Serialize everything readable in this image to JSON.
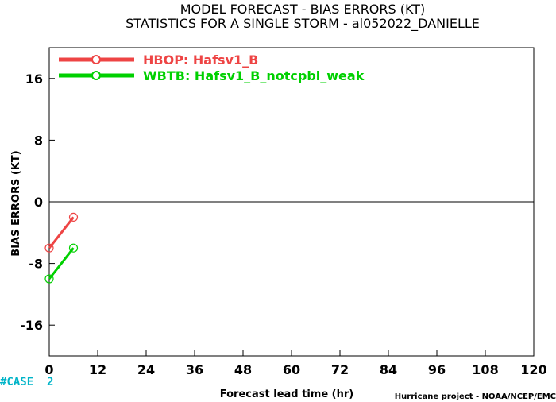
{
  "chart_data": {
    "type": "line",
    "title": "MODEL FORECAST - BIAS ERRORS (KT)",
    "subtitle": "STATISTICS FOR A SINGLE STORM - al052022_DANIELLE",
    "xlabel": "Forecast lead time (hr)",
    "ylabel": "BIAS ERRORS (KT)",
    "xlim": [
      0,
      120
    ],
    "ylim": [
      -20,
      20
    ],
    "xticks": [
      0,
      12,
      24,
      36,
      48,
      60,
      72,
      84,
      96,
      108,
      120
    ],
    "yticks": [
      -16,
      -8,
      0,
      8,
      16
    ],
    "grid": false,
    "zero_line": true,
    "legend_position": "top-left",
    "series": [
      {
        "name": "HBOP: Hafsv1_B",
        "color": "#ee4444",
        "x": [
          0,
          6
        ],
        "y": [
          -6,
          -2
        ]
      },
      {
        "name": "WBTB: Hafsv1_B_notcpbl_weak",
        "color": "#00d000",
        "x": [
          0,
          6
        ],
        "y": [
          -10,
          -6
        ]
      }
    ]
  },
  "annotations": {
    "case_label": "#CASE  2",
    "credit": "Hurricane project - NOAA/NCEP/EMC"
  }
}
